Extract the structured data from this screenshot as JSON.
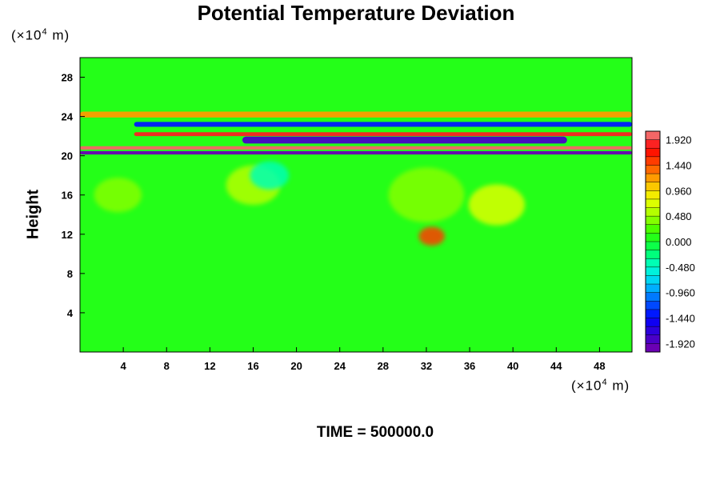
{
  "chart_data": {
    "type": "heatmap",
    "title": "Potential Temperature Deviation",
    "ylabel": "Height",
    "xlabel": "",
    "x_unit": "(×10⁴ m)",
    "y_unit": "(×10⁴ m)",
    "x_unit_base": "(×10",
    "x_unit_exp": "4",
    "x_unit_tail": " m)",
    "y_unit_base": "(×10",
    "y_unit_exp": "4",
    "y_unit_tail": " m)",
    "xlim": [
      0,
      51
    ],
    "ylim": [
      0,
      30
    ],
    "x_ticks": [
      4,
      8,
      12,
      16,
      20,
      24,
      28,
      32,
      36,
      40,
      44,
      48
    ],
    "y_ticks": [
      4,
      8,
      12,
      16,
      20,
      24,
      28
    ],
    "colorbar": {
      "min": -2.08,
      "max": 2.08,
      "step": 0.16,
      "labels": [
        "1.920",
        "1.440",
        "0.960",
        "0.480",
        "0.000",
        "-0.480",
        "-0.960",
        "-1.440",
        "-1.920"
      ],
      "label_values": [
        1.92,
        1.44,
        0.96,
        0.48,
        0.0,
        -0.48,
        -0.96,
        -1.44,
        -1.92
      ],
      "colormap": [
        "#7a00aa",
        "#3a00d0",
        "#0000ff",
        "#0060ff",
        "#00c8ff",
        "#00ffd0",
        "#00ff60",
        "#30ff00",
        "#a0ff00",
        "#f0ff00",
        "#ffb400",
        "#ff5000",
        "#ff0000",
        "#f08888"
      ]
    },
    "background_value": 0.05,
    "features": [
      {
        "kind": "band",
        "x": [
          0,
          51
        ],
        "y": 20.3,
        "value": -1.95,
        "thickness": 0.35
      },
      {
        "kind": "band",
        "x": [
          0,
          51
        ],
        "y": 20.8,
        "value": 1.95,
        "thickness": 0.35
      },
      {
        "kind": "band",
        "x": [
          15,
          45
        ],
        "y": 21.6,
        "value": -1.9,
        "thickness": 0.7
      },
      {
        "kind": "band",
        "x": [
          5,
          51
        ],
        "y": 22.2,
        "value": 1.9,
        "thickness": 0.4
      },
      {
        "kind": "band",
        "x": [
          5,
          51
        ],
        "y": 23.2,
        "value": -1.4,
        "thickness": 0.5
      },
      {
        "kind": "band",
        "x": [
          0,
          51
        ],
        "y": 24.2,
        "value": 1.2,
        "thickness": 0.6
      },
      {
        "kind": "blob",
        "x": 32.5,
        "y": 11.8,
        "value": 1.5,
        "radius": 1.2
      },
      {
        "kind": "blob",
        "x": 38.5,
        "y": 15.0,
        "value": 0.7,
        "radius": 2.6
      },
      {
        "kind": "blob",
        "x": 16.0,
        "y": 17.0,
        "value": 0.6,
        "radius": 2.5
      },
      {
        "kind": "blob",
        "x": 32.0,
        "y": 16.0,
        "value": 0.4,
        "radius": 3.5
      },
      {
        "kind": "blob",
        "x": 17.5,
        "y": 18.0,
        "value": -0.4,
        "radius": 1.8
      },
      {
        "kind": "blob",
        "x": 3.5,
        "y": 16.0,
        "value": 0.4,
        "radius": 2.2
      }
    ]
  },
  "time_label": "TIME = 500000.0"
}
